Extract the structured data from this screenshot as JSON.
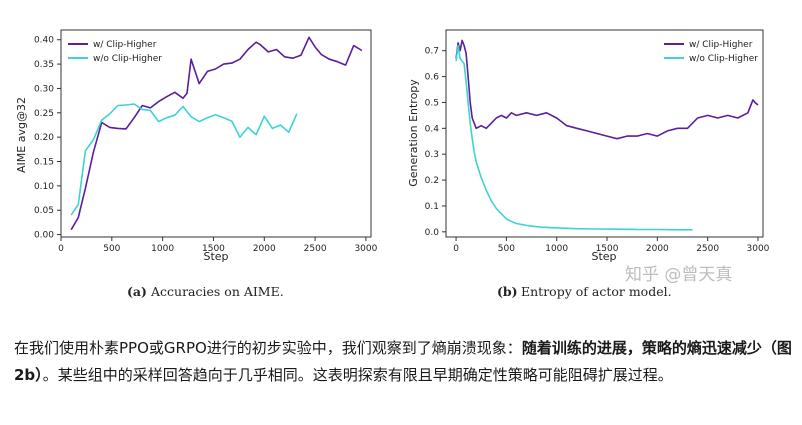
{
  "chart_data": [
    {
      "type": "line",
      "xlabel": "Step",
      "ylabel": "AIME avg@32",
      "xlim": [
        0,
        3050
      ],
      "ylim": [
        -0.005,
        0.42
      ],
      "xticks": [
        "0",
        "500",
        "1000",
        "1500",
        "2000",
        "2500",
        "3000"
      ],
      "yticks": [
        "0.00",
        "0.05",
        "0.10",
        "0.15",
        "0.20",
        "0.25",
        "0.30",
        "0.35",
        "0.40"
      ],
      "legend": "top-left",
      "caption_label": "(a)",
      "caption_text": "Accuracies on AIME.",
      "series": [
        {
          "name": "w/ Clip-Higher",
          "color": "#5b1e9c",
          "x": [
            100,
            170,
            240,
            320,
            400,
            480,
            560,
            640,
            720,
            800,
            880,
            960,
            1040,
            1120,
            1200,
            1240,
            1280,
            1360,
            1440,
            1520,
            1600,
            1680,
            1760,
            1840,
            1920,
            1960,
            2040,
            2120,
            2200,
            2280,
            2360,
            2440,
            2500,
            2560,
            2640,
            2720,
            2800,
            2880,
            2960
          ],
          "y": [
            0.01,
            0.035,
            0.095,
            0.17,
            0.23,
            0.22,
            0.218,
            0.217,
            0.24,
            0.265,
            0.26,
            0.273,
            0.283,
            0.292,
            0.28,
            0.29,
            0.36,
            0.31,
            0.335,
            0.34,
            0.35,
            0.352,
            0.36,
            0.38,
            0.395,
            0.39,
            0.375,
            0.38,
            0.365,
            0.362,
            0.368,
            0.405,
            0.385,
            0.37,
            0.36,
            0.355,
            0.348,
            0.388,
            0.378
          ]
        },
        {
          "name": "w/o Clip-Higher",
          "color": "#3ed3d3",
          "x": [
            100,
            170,
            240,
            320,
            400,
            480,
            560,
            640,
            720,
            800,
            880,
            960,
            1040,
            1120,
            1200,
            1280,
            1360,
            1440,
            1520,
            1600,
            1680,
            1760,
            1840,
            1920,
            2000,
            2080,
            2160,
            2240,
            2320
          ],
          "y": [
            0.04,
            0.062,
            0.172,
            0.195,
            0.235,
            0.248,
            0.265,
            0.266,
            0.268,
            0.257,
            0.255,
            0.232,
            0.24,
            0.245,
            0.263,
            0.242,
            0.232,
            0.24,
            0.246,
            0.24,
            0.233,
            0.2,
            0.22,
            0.205,
            0.243,
            0.218,
            0.225,
            0.21,
            0.248
          ]
        }
      ]
    },
    {
      "type": "line",
      "xlabel": "Step",
      "ylabel": "Generation Entropy",
      "xlim": [
        -100,
        3050
      ],
      "ylim": [
        -0.02,
        0.78
      ],
      "xticks": [
        "0",
        "500",
        "1000",
        "1500",
        "2000",
        "2500",
        "3000"
      ],
      "yticks": [
        "0.0",
        "0.1",
        "0.2",
        "0.3",
        "0.4",
        "0.5",
        "0.6",
        "0.7"
      ],
      "legend": "top-right",
      "caption_label": "(b)",
      "caption_text": "Entropy of actor model.",
      "series": [
        {
          "name": "w/ Clip-Higher",
          "color": "#5b1e9c",
          "x": [
            0,
            20,
            40,
            60,
            80,
            100,
            120,
            140,
            160,
            180,
            200,
            250,
            300,
            350,
            400,
            450,
            500,
            550,
            600,
            700,
            800,
            900,
            1000,
            1100,
            1200,
            1300,
            1400,
            1500,
            1600,
            1700,
            1800,
            1900,
            2000,
            2100,
            2200,
            2300,
            2400,
            2500,
            2600,
            2700,
            2800,
            2900,
            2950,
            2970,
            3000
          ],
          "y": [
            0.67,
            0.73,
            0.7,
            0.74,
            0.72,
            0.69,
            0.6,
            0.5,
            0.44,
            0.42,
            0.4,
            0.41,
            0.4,
            0.42,
            0.44,
            0.45,
            0.44,
            0.46,
            0.45,
            0.46,
            0.45,
            0.46,
            0.44,
            0.41,
            0.4,
            0.39,
            0.38,
            0.37,
            0.36,
            0.37,
            0.37,
            0.38,
            0.37,
            0.39,
            0.4,
            0.4,
            0.44,
            0.45,
            0.44,
            0.45,
            0.44,
            0.46,
            0.51,
            0.5,
            0.49
          ]
        },
        {
          "name": "w/o Clip-Higher",
          "color": "#3ed3d3",
          "x": [
            0,
            20,
            40,
            60,
            80,
            100,
            120,
            140,
            160,
            180,
            200,
            250,
            300,
            350,
            400,
            450,
            500,
            550,
            600,
            700,
            800,
            900,
            1000,
            1200,
            1400,
            1600,
            1800,
            2000,
            2200,
            2350
          ],
          "y": [
            0.66,
            0.72,
            0.67,
            0.66,
            0.65,
            0.58,
            0.5,
            0.42,
            0.36,
            0.31,
            0.27,
            0.21,
            0.16,
            0.12,
            0.09,
            0.07,
            0.05,
            0.04,
            0.032,
            0.025,
            0.02,
            0.017,
            0.015,
            0.012,
            0.011,
            0.01,
            0.009,
            0.009,
            0.008,
            0.008
          ]
        }
      ]
    }
  ],
  "watermark": "知乎 @曾天真",
  "article": {
    "part1": "在我们使用朴素PPO或GRPO进行的初步实验中，我们观察到了熵崩溃现象：",
    "bold": "随着训练的进展，策略的熵迅速减少（图2b）",
    "part2": "。某些组中的采样回答趋向于几乎相同。这表明探索有限且早期确定性策略可能阻碍扩展过程。"
  }
}
